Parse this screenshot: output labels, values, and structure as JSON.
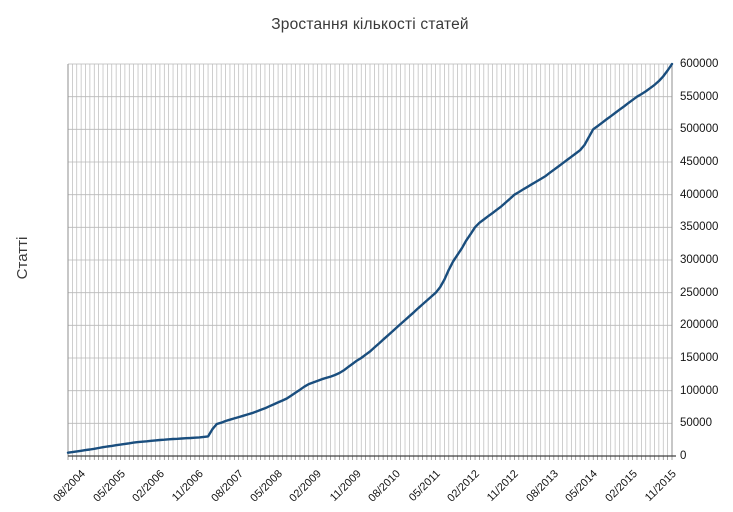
{
  "chart_data": {
    "type": "line",
    "title": "Зростання кількості статей",
    "ylabel": "Статті",
    "xlabel": "",
    "legend": "none",
    "grid": {
      "vertical": "every month",
      "horizontal": "every 50000"
    },
    "x_start": "05/2004",
    "x_end": "11/2015",
    "x_step": "1 month",
    "x_tick_labels": [
      "08/2004",
      "05/2005",
      "02/2006",
      "11/2006",
      "08/2007",
      "05/2008",
      "02/2009",
      "11/2009",
      "08/2010",
      "05/2011",
      "02/2012",
      "11/2012",
      "08/2013",
      "05/2014",
      "02/2015",
      "11/2015"
    ],
    "x_tick_month_indices": [
      3,
      12,
      21,
      30,
      39,
      48,
      57,
      66,
      75,
      84,
      93,
      102,
      111,
      120,
      129,
      138
    ],
    "y_ticks": [
      0,
      50000,
      100000,
      150000,
      200000,
      250000,
      300000,
      350000,
      400000,
      450000,
      500000,
      550000,
      600000
    ],
    "ylim": [
      0,
      600000
    ],
    "series": [
      {
        "name": "Статті",
        "values": [
          5000,
          6000,
          7000,
          8000,
          9000,
          10000,
          11000,
          12200,
          13400,
          14500,
          15500,
          16500,
          17500,
          18500,
          19500,
          20500,
          21200,
          21900,
          22500,
          23200,
          23900,
          24500,
          25000,
          25500,
          26000,
          26400,
          26800,
          27200,
          27600,
          28000,
          28500,
          29200,
          30000,
          41000,
          49000,
          51000,
          53500,
          55500,
          57500,
          59500,
          61500,
          63500,
          65500,
          68000,
          70500,
          73000,
          76000,
          79000,
          82000,
          85000,
          88000,
          92500,
          97000,
          101500,
          106000,
          110000,
          112500,
          115000,
          117500,
          119500,
          121500,
          124000,
          127000,
          131000,
          136000,
          141000,
          146000,
          150000,
          155000,
          160000,
          166000,
          172000,
          178000,
          184000,
          190000,
          196000,
          202000,
          208000,
          214000,
          220000,
          226000,
          232000,
          238000,
          244000,
          250000,
          258000,
          270000,
          285000,
          298000,
          308000,
          318000,
          330000,
          340000,
          350000,
          357000,
          362000,
          367000,
          372000,
          377000,
          382000,
          388000,
          394000,
          400000,
          404000,
          408000,
          412000,
          416000,
          420000,
          424000,
          428000,
          433000,
          438000,
          443000,
          448000,
          453000,
          458000,
          463000,
          468000,
          476000,
          488000,
          500000,
          505000,
          510000,
          515000,
          520000,
          525000,
          530000,
          535000,
          540000,
          545000,
          550000,
          554000,
          558000,
          563000,
          568000,
          574000,
          581000,
          590000,
          600000
        ]
      }
    ]
  },
  "colors": {
    "line": "#1a4e7e",
    "grid": "#b9b9b9",
    "border": "#8f8f8f",
    "axis": "#404040",
    "tick": "#7a7a7a",
    "title_text": "#3a3a3a",
    "label_text": "#141414",
    "background": "#ffffff"
  }
}
